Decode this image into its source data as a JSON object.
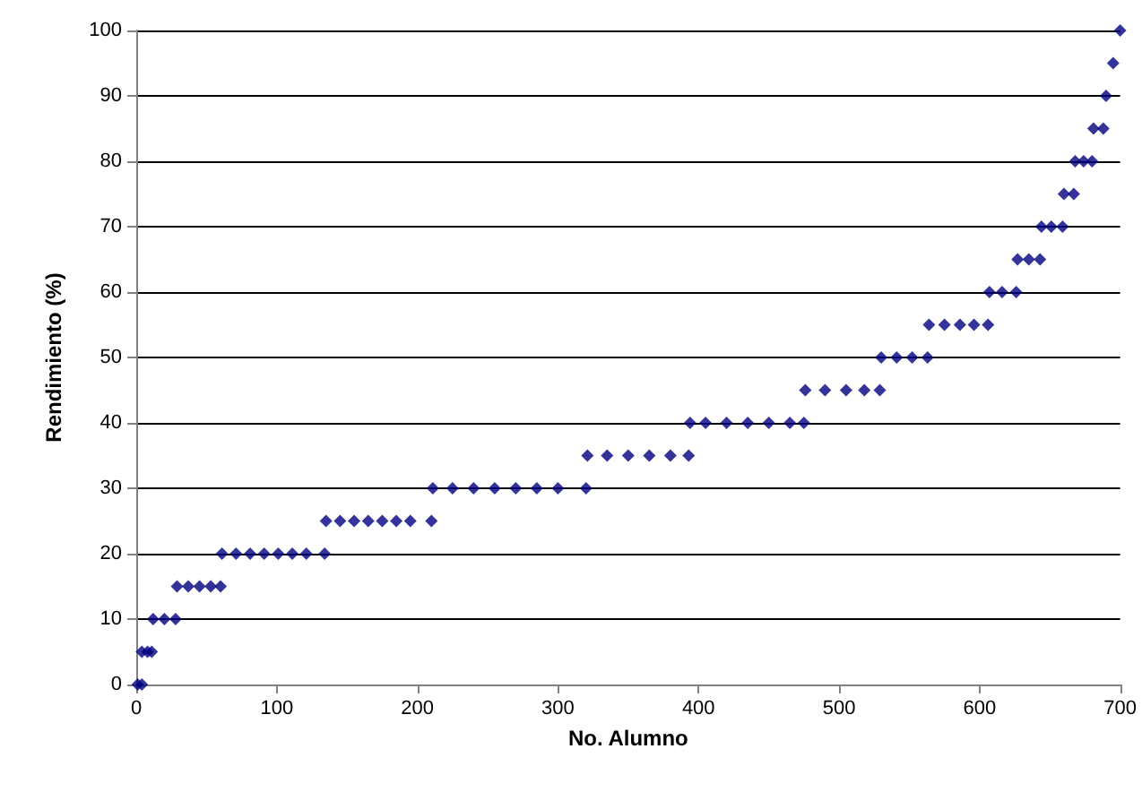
{
  "chart_data": {
    "type": "scatter",
    "xlabel": "No. Alumno",
    "ylabel": "Rendimiento (%)",
    "xlim": [
      0,
      700
    ],
    "xticks": [
      0,
      100,
      200,
      300,
      400,
      500,
      600,
      700
    ],
    "ylim": [
      0,
      100
    ],
    "yticks": [
      0,
      10,
      20,
      30,
      40,
      50,
      60,
      70,
      80,
      90,
      100
    ],
    "grid": "y",
    "marker": "diamond",
    "series": [
      {
        "color": "#000080",
        "x": [
          1,
          4,
          4,
          8,
          11,
          12,
          20,
          28,
          29,
          37,
          45,
          53,
          60,
          61,
          71,
          81,
          91,
          101,
          111,
          121,
          134,
          135,
          145,
          155,
          165,
          175,
          185,
          195,
          210,
          211,
          225,
          240,
          255,
          270,
          285,
          300,
          320,
          321,
          335,
          350,
          365,
          380,
          393,
          394,
          405,
          420,
          435,
          450,
          465,
          475,
          476,
          490,
          505,
          518,
          529,
          530,
          541,
          552,
          563,
          564,
          575,
          586,
          596,
          606,
          607,
          616,
          626,
          627,
          635,
          643,
          644,
          651,
          659,
          660,
          667,
          668,
          674,
          680,
          681,
          688,
          690,
          695,
          700
        ],
        "values": [
          0,
          0,
          5,
          5,
          5,
          10,
          10,
          10,
          15,
          15,
          15,
          15,
          15,
          20,
          20,
          20,
          20,
          20,
          20,
          20,
          20,
          25,
          25,
          25,
          25,
          25,
          25,
          25,
          25,
          30,
          30,
          30,
          30,
          30,
          30,
          30,
          30,
          35,
          35,
          35,
          35,
          35,
          35,
          40,
          40,
          40,
          40,
          40,
          40,
          40,
          45,
          45,
          45,
          45,
          45,
          50,
          50,
          50,
          50,
          55,
          55,
          55,
          55,
          55,
          60,
          60,
          60,
          65,
          65,
          65,
          70,
          70,
          70,
          75,
          75,
          80,
          80,
          80,
          85,
          85,
          90,
          95,
          100
        ]
      }
    ]
  }
}
